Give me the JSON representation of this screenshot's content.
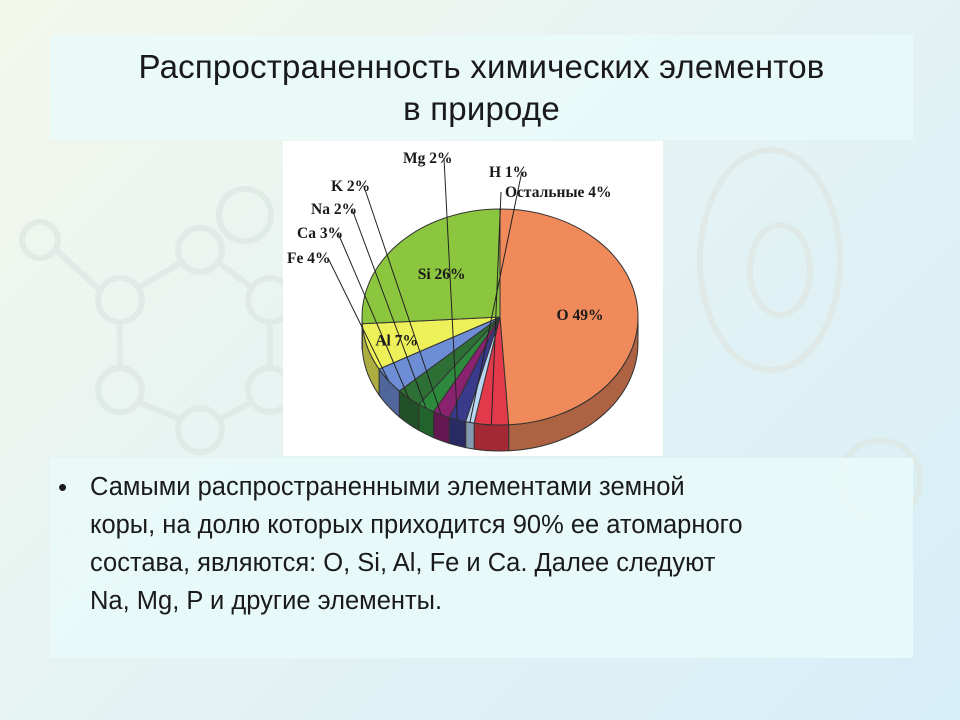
{
  "slide": {
    "title_lines": [
      "Распространенность химических элементов",
      "в природе"
    ],
    "bullet_lines": [
      "Самыми распространенными элементами земной",
      "коры, на долю которых приходится 90% ее атомарного",
      "состава, являются: O, Si, Al, Fe и Ca. Далее следуют",
      "Na, Mg, P и другие элементы."
    ]
  },
  "chart_data": {
    "type": "pie",
    "title": "",
    "slices": [
      {
        "label": "O 49%",
        "value": 49,
        "color": "#f08a5a"
      },
      {
        "label": "Остальные 4%",
        "value": 4,
        "color": "#e23a4a"
      },
      {
        "label": "H 1%",
        "value": 1,
        "color": "#b9d6f2"
      },
      {
        "label": "Mg 2%",
        "value": 2,
        "color": "#3a3a8c"
      },
      {
        "label": "K 2%",
        "value": 2,
        "color": "#8a2270"
      },
      {
        "label": "Na 2%",
        "value": 2,
        "color": "#2d8a3c"
      },
      {
        "label": "Ca 3%",
        "value": 3,
        "color": "#2e6f35"
      },
      {
        "label": "Fe 4%",
        "value": 4,
        "color": "#6d8ed6"
      },
      {
        "label": "Al 7%",
        "value": 7,
        "color": "#eef05a"
      },
      {
        "label": "Si 26%",
        "value": 26,
        "color": "#8cc63f"
      }
    ]
  }
}
